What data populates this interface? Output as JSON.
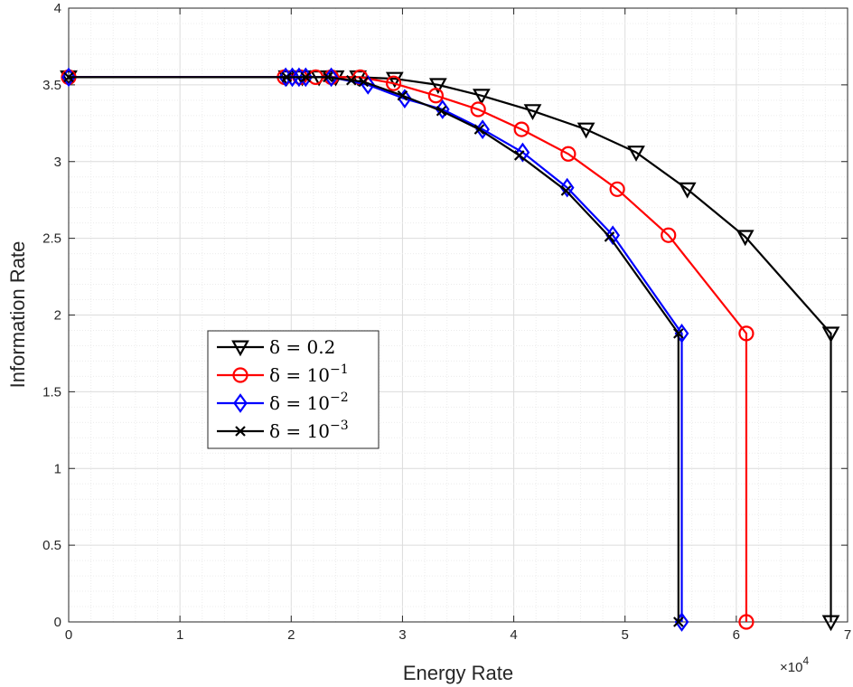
{
  "chart_data": {
    "type": "line",
    "xlabel": "Energy Rate",
    "ylabel": "Information Rate",
    "x_exponent_label": "×10",
    "x_exponent_power": "4",
    "xlim": [
      0,
      7
    ],
    "ylim": [
      0,
      4
    ],
    "x_scale_factor": 10000,
    "grid": true,
    "minor_grid": true,
    "legend_position": "center-left",
    "x_tick_labels": [
      "0",
      "1",
      "2",
      "3",
      "4",
      "5",
      "6",
      "7"
    ],
    "y_tick_labels": [
      "0",
      "0.5",
      "1",
      "1.5",
      "2",
      "2.5",
      "3",
      "3.5",
      "4"
    ],
    "series": [
      {
        "name": "δ = 0.2",
        "legend_base": "δ = 0.2",
        "legend_sup": "",
        "color": "#000000",
        "marker": "triangle-down",
        "points": [
          [
            0,
            3.55
          ],
          [
            19600,
            3.55
          ],
          [
            21000,
            3.55
          ],
          [
            22500,
            3.55
          ],
          [
            24000,
            3.55
          ],
          [
            26000,
            3.55
          ],
          [
            29300,
            3.54
          ],
          [
            33200,
            3.5
          ],
          [
            37100,
            3.43
          ],
          [
            41700,
            3.33
          ],
          [
            46500,
            3.21
          ],
          [
            51000,
            3.06
          ],
          [
            55600,
            2.82
          ],
          [
            60800,
            2.51
          ],
          [
            68500,
            1.88
          ],
          [
            68500,
            0
          ]
        ]
      },
      {
        "name": "δ = 10^-1",
        "legend_base": "δ = 10",
        "legend_sup": "−1",
        "color": "#ff0000",
        "marker": "circle",
        "points": [
          [
            0,
            3.55
          ],
          [
            19400,
            3.55
          ],
          [
            20800,
            3.55
          ],
          [
            22200,
            3.55
          ],
          [
            23600,
            3.55
          ],
          [
            26200,
            3.55
          ],
          [
            29200,
            3.51
          ],
          [
            33000,
            3.43
          ],
          [
            36800,
            3.34
          ],
          [
            40700,
            3.21
          ],
          [
            44900,
            3.05
          ],
          [
            49300,
            2.82
          ],
          [
            53900,
            2.52
          ],
          [
            60900,
            1.88
          ],
          [
            60900,
            0
          ]
        ]
      },
      {
        "name": "δ = 10^-2",
        "legend_base": "δ = 10",
        "legend_sup": "−2",
        "color": "#0000ff",
        "marker": "diamond",
        "points": [
          [
            0,
            3.55
          ],
          [
            19500,
            3.55
          ],
          [
            20100,
            3.55
          ],
          [
            20700,
            3.55
          ],
          [
            21300,
            3.55
          ],
          [
            23600,
            3.55
          ],
          [
            26900,
            3.5
          ],
          [
            30200,
            3.41
          ],
          [
            33600,
            3.34
          ],
          [
            37200,
            3.21
          ],
          [
            40800,
            3.06
          ],
          [
            44800,
            2.83
          ],
          [
            48900,
            2.52
          ],
          [
            55100,
            1.88
          ],
          [
            55100,
            0
          ]
        ]
      },
      {
        "name": "δ = 10^-3",
        "legend_base": "δ = 10",
        "legend_sup": "−3",
        "color": "#000000",
        "marker": "x",
        "points": [
          [
            0,
            3.55
          ],
          [
            19600,
            3.55
          ],
          [
            21300,
            3.55
          ],
          [
            23300,
            3.55
          ],
          [
            25400,
            3.53
          ],
          [
            26500,
            3.52
          ],
          [
            30000,
            3.43
          ],
          [
            33500,
            3.33
          ],
          [
            36900,
            3.21
          ],
          [
            40500,
            3.04
          ],
          [
            44700,
            2.81
          ],
          [
            48600,
            2.51
          ],
          [
            54800,
            1.88
          ],
          [
            54800,
            0
          ]
        ]
      }
    ]
  }
}
